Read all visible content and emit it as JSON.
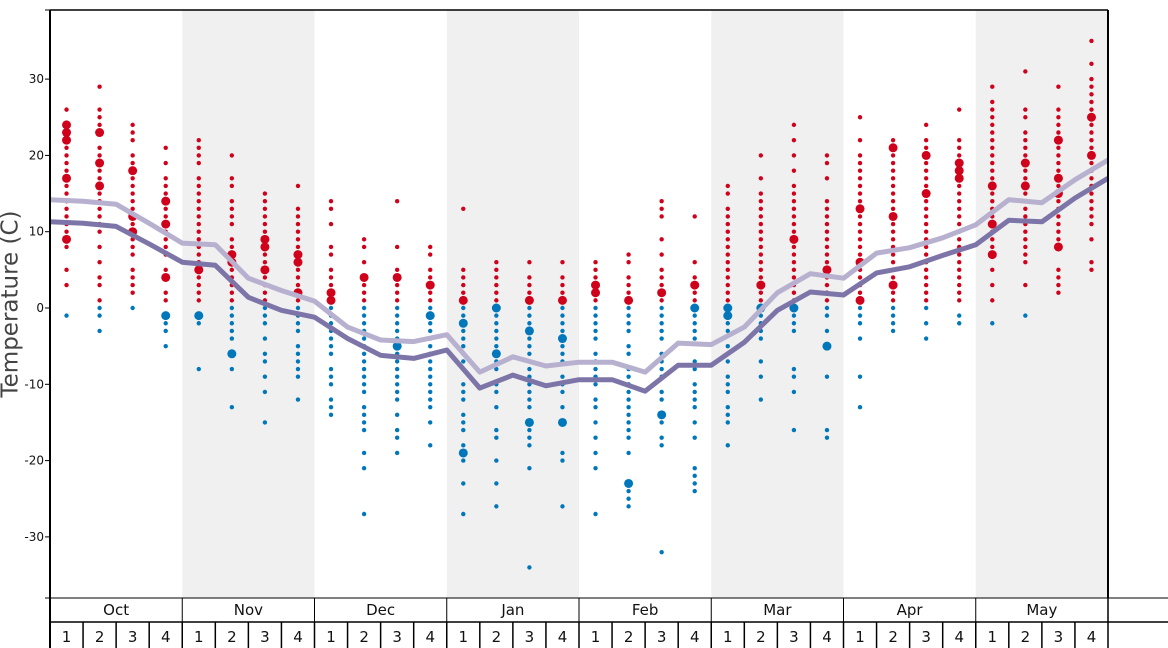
{
  "chart_data": {
    "type": "scatter",
    "ylabel": "Temperature (C)",
    "ylim": [
      -38,
      39
    ],
    "yticks": [
      30,
      20,
      10,
      0,
      -10,
      -20,
      -30
    ],
    "months": [
      "Oct",
      "Nov",
      "Dec",
      "Jan",
      "Feb",
      "Mar",
      "Apr",
      "May"
    ],
    "shaded_months": [
      "Nov",
      "Jan",
      "Mar",
      "May"
    ],
    "weeks_per_month": [
      "1",
      "2",
      "3",
      "4"
    ],
    "colors": {
      "warm_dot": "#d0021b",
      "cold_dot": "#0077bb",
      "upper_line": "#b7b0cf",
      "lower_line": "#7d74a8",
      "shade": "#f0f0f0"
    },
    "upper_line": [
      14.2,
      14.0,
      13.6,
      11.1,
      8.5,
      8.3,
      3.9,
      2.3,
      0.9,
      -2.5,
      -4.2,
      -4.4,
      -3.5,
      -8.4,
      -6.4,
      -7.6,
      -7.1,
      -7.1,
      -8.4,
      -4.6,
      -4.8,
      -2.5,
      2.0,
      4.5,
      3.9,
      7.2,
      7.9,
      9.2,
      10.9,
      14.2,
      13.8,
      16.8,
      19.4
    ],
    "lower_line": [
      11.3,
      11.1,
      10.7,
      8.4,
      6.0,
      5.6,
      1.4,
      -0.3,
      -1.2,
      -4.0,
      -6.2,
      -6.6,
      -5.5,
      -10.5,
      -8.8,
      -10.2,
      -9.4,
      -9.4,
      -10.9,
      -7.5,
      -7.5,
      -4.5,
      -0.3,
      2.1,
      1.7,
      4.6,
      5.4,
      6.9,
      8.3,
      11.5,
      11.3,
      14.4,
      17.0
    ],
    "weeks": [
      {
        "temps": [
          26,
          24,
          23,
          22,
          21,
          20,
          19,
          18,
          17,
          16,
          15,
          14,
          13,
          12,
          11,
          10,
          9,
          8,
          5,
          3,
          -1
        ],
        "frequent": [
          17,
          24,
          23,
          22,
          9
        ]
      },
      {
        "temps": [
          29,
          26,
          25,
          24,
          23,
          21,
          20,
          19,
          18,
          17,
          16,
          15,
          14,
          13,
          12,
          11,
          10,
          8,
          6,
          4,
          3,
          1,
          0,
          -1,
          -3
        ],
        "frequent": [
          23,
          19,
          16
        ]
      },
      {
        "temps": [
          24,
          23,
          22,
          20,
          19,
          18,
          17,
          16,
          15,
          14,
          13,
          12,
          11,
          10,
          9,
          8,
          7,
          5,
          4,
          3,
          2,
          0
        ],
        "frequent": [
          18,
          12,
          10
        ]
      },
      {
        "temps": [
          21,
          19,
          17,
          16,
          15,
          14,
          13,
          12,
          11,
          10,
          9,
          8,
          7,
          5,
          4,
          2,
          1,
          -1,
          -2,
          -3,
          -5
        ],
        "frequent": [
          14,
          11,
          4,
          -1
        ]
      },
      {
        "temps": [
          22,
          21,
          20,
          19,
          17,
          16,
          15,
          14,
          13,
          12,
          11,
          10,
          9,
          8,
          7,
          6,
          5,
          4,
          3,
          2,
          1,
          -1,
          -2,
          -8
        ],
        "frequent": [
          5,
          -1
        ]
      },
      {
        "temps": [
          20,
          17,
          16,
          14,
          13,
          12,
          11,
          9,
          8,
          7,
          6,
          5,
          4,
          3,
          2,
          1,
          0,
          -1,
          -2,
          -3,
          -4,
          -6,
          -8,
          -13
        ],
        "frequent": [
          7,
          6,
          -6
        ]
      },
      {
        "temps": [
          15,
          14,
          13,
          12,
          11,
          10,
          9,
          8,
          7,
          6,
          5,
          4,
          3,
          2,
          1,
          0,
          -1,
          -2,
          -4,
          -6,
          -7,
          -9,
          -11,
          -15
        ],
        "frequent": [
          9,
          8,
          5
        ]
      },
      {
        "temps": [
          16,
          13,
          12,
          11,
          10,
          9,
          8,
          7,
          6,
          5,
          4,
          3,
          2,
          1,
          0,
          -1,
          -2,
          -3,
          -5,
          -6,
          -7,
          -8,
          -9,
          -12
        ],
        "frequent": [
          7,
          6,
          2
        ]
      },
      {
        "temps": [
          14,
          13,
          11,
          8,
          7,
          5,
          4,
          3,
          2,
          1,
          0,
          -1,
          -2,
          -3,
          -4,
          -5,
          -6,
          -8,
          -9,
          -10,
          -12,
          -13,
          -14
        ],
        "frequent": [
          2,
          1
        ]
      },
      {
        "temps": [
          9,
          8,
          6,
          4,
          3,
          2,
          1,
          0,
          -1,
          -2,
          -3,
          -4,
          -5,
          -6,
          -7,
          -8,
          -9,
          -10,
          -11,
          -13,
          -14,
          -15,
          -16,
          -19,
          -21,
          -27
        ],
        "frequent": [
          4
        ]
      },
      {
        "temps": [
          14,
          8,
          5,
          4,
          3,
          2,
          1,
          0,
          -1,
          -2,
          -3,
          -4,
          -5,
          -6,
          -7,
          -8,
          -9,
          -10,
          -11,
          -12,
          -14,
          -16,
          -17,
          -19
        ],
        "frequent": [
          4,
          -5
        ]
      },
      {
        "temps": [
          8,
          7,
          5,
          4,
          3,
          2,
          1,
          0,
          -1,
          -2,
          -3,
          -4,
          -5,
          -6,
          -7,
          -8,
          -9,
          -10,
          -11,
          -12,
          -13,
          -15,
          -18
        ],
        "frequent": [
          3,
          -1
        ]
      },
      {
        "temps": [
          13,
          5,
          4,
          3,
          2,
          1,
          0,
          -1,
          -2,
          -3,
          -4,
          -5,
          -6,
          -7,
          -8,
          -10,
          -11,
          -12,
          -14,
          -15,
          -16,
          -18,
          -19,
          -20,
          -23,
          -27
        ],
        "frequent": [
          -2,
          -19,
          1
        ]
      },
      {
        "temps": [
          6,
          5,
          4,
          3,
          2,
          1,
          0,
          -1,
          -2,
          -3,
          -4,
          -5,
          -6,
          -7,
          -8,
          -10,
          -11,
          -13,
          -16,
          -17,
          -20,
          -23,
          -26
        ],
        "frequent": [
          0,
          -6
        ]
      },
      {
        "temps": [
          6,
          4,
          3,
          2,
          1,
          0,
          -1,
          -2,
          -3,
          -4,
          -5,
          -6,
          -7,
          -8,
          -9,
          -10,
          -11,
          -12,
          -13,
          -15,
          -16,
          -17,
          -18,
          -21,
          -34
        ],
        "frequent": [
          1,
          -3,
          -15
        ]
      },
      {
        "temps": [
          6,
          4,
          3,
          2,
          1,
          0,
          -1,
          -2,
          -3,
          -4,
          -5,
          -6,
          -7,
          -9,
          -10,
          -11,
          -13,
          -15,
          -19,
          -20,
          -26
        ],
        "frequent": [
          1,
          -4,
          -15
        ]
      },
      {
        "temps": [
          6,
          5,
          4,
          3,
          2,
          1,
          0,
          -1,
          -2,
          -3,
          -4,
          -6,
          -7,
          -8,
          -9,
          -10,
          -12,
          -13,
          -15,
          -17,
          -19,
          -21,
          -27
        ],
        "frequent": [
          3,
          2
        ]
      },
      {
        "temps": [
          7,
          6,
          4,
          3,
          2,
          1,
          0,
          -1,
          -2,
          -3,
          -5,
          -6,
          -8,
          -9,
          -10,
          -11,
          -12,
          -13,
          -14,
          -15,
          -16,
          -17,
          -19,
          -23,
          -24,
          -25,
          -26
        ],
        "frequent": [
          1,
          -23
        ]
      },
      {
        "temps": [
          14,
          13,
          12,
          9,
          7,
          5,
          4,
          3,
          2,
          1,
          0,
          -1,
          -2,
          -3,
          -4,
          -6,
          -7,
          -8,
          -9,
          -11,
          -12,
          -14,
          -15,
          -17,
          -18,
          -32
        ],
        "frequent": [
          2,
          -14
        ]
      },
      {
        "temps": [
          12,
          6,
          4,
          3,
          2,
          1,
          0,
          -1,
          -2,
          -3,
          -4,
          -7,
          -8,
          -10,
          -11,
          -12,
          -13,
          -15,
          -17,
          -21,
          -22,
          -23,
          -24
        ],
        "frequent": [
          3,
          0
        ]
      },
      {
        "temps": [
          16,
          15,
          13,
          12,
          11,
          10,
          9,
          8,
          7,
          6,
          5,
          4,
          3,
          2,
          1,
          0,
          -1,
          -2,
          -3,
          -5,
          -6,
          -7,
          -9,
          -10,
          -11,
          -13,
          -14,
          -15,
          -18
        ],
        "frequent": [
          -1,
          0
        ]
      },
      {
        "temps": [
          20,
          17,
          15,
          14,
          13,
          12,
          11,
          10,
          9,
          8,
          7,
          6,
          5,
          4,
          3,
          2,
          1,
          0,
          -1,
          -2,
          -3,
          -4,
          -7,
          -9,
          -12
        ],
        "frequent": [
          3,
          0
        ]
      },
      {
        "temps": [
          24,
          22,
          20,
          18,
          16,
          15,
          14,
          13,
          12,
          11,
          10,
          9,
          8,
          7,
          6,
          5,
          4,
          3,
          2,
          1,
          0,
          -1,
          -2,
          -3,
          -8,
          -9,
          -11,
          -16
        ],
        "frequent": [
          9,
          0
        ]
      },
      {
        "temps": [
          20,
          19,
          17,
          14,
          13,
          12,
          11,
          10,
          9,
          8,
          7,
          6,
          5,
          4,
          3,
          2,
          1,
          0,
          -1,
          -3,
          -5,
          -9,
          -16,
          -17
        ],
        "frequent": [
          5,
          -5
        ]
      },
      {
        "temps": [
          25,
          22,
          20,
          19,
          18,
          17,
          16,
          15,
          14,
          13,
          12,
          11,
          10,
          9,
          8,
          7,
          6,
          5,
          4,
          3,
          2,
          1,
          0,
          -1,
          -2,
          -4,
          -9,
          -13
        ],
        "frequent": [
          13,
          6,
          1
        ]
      },
      {
        "temps": [
          22,
          21,
          20,
          19,
          18,
          17,
          16,
          15,
          14,
          13,
          12,
          11,
          10,
          9,
          8,
          7,
          6,
          5,
          4,
          3,
          2,
          1,
          0,
          -1,
          -2,
          -3
        ],
        "frequent": [
          21,
          12,
          3
        ]
      },
      {
        "temps": [
          24,
          22,
          21,
          20,
          19,
          18,
          17,
          16,
          15,
          14,
          13,
          12,
          11,
          10,
          9,
          8,
          7,
          6,
          5,
          4,
          3,
          2,
          1,
          0,
          -2,
          -4
        ],
        "frequent": [
          20,
          15
        ]
      },
      {
        "temps": [
          26,
          22,
          21,
          20,
          19,
          18,
          17,
          16,
          15,
          14,
          13,
          12,
          11,
          10,
          9,
          8,
          7,
          6,
          5,
          4,
          3,
          2,
          1,
          -1,
          -2
        ],
        "frequent": [
          19,
          18,
          17
        ]
      },
      {
        "temps": [
          29,
          27,
          26,
          25,
          24,
          23,
          22,
          21,
          20,
          19,
          18,
          17,
          16,
          15,
          14,
          13,
          12,
          11,
          10,
          9,
          8,
          7,
          5,
          3,
          1,
          -2
        ],
        "frequent": [
          16,
          11,
          7
        ]
      },
      {
        "temps": [
          31,
          26,
          25,
          23,
          22,
          21,
          20,
          19,
          18,
          17,
          16,
          15,
          14,
          13,
          12,
          11,
          10,
          9,
          8,
          7,
          6,
          3,
          -1
        ],
        "frequent": [
          16,
          19
        ]
      },
      {
        "temps": [
          29,
          26,
          25,
          24,
          23,
          22,
          21,
          20,
          19,
          18,
          17,
          16,
          15,
          14,
          13,
          12,
          11,
          10,
          9,
          8,
          5,
          4,
          3,
          2
        ],
        "frequent": [
          22,
          17,
          15,
          8
        ]
      },
      {
        "temps": [
          35,
          32,
          30,
          29,
          28,
          27,
          26,
          25,
          24,
          23,
          22,
          21,
          20,
          19,
          18,
          17,
          16,
          15,
          14,
          13,
          12,
          11,
          9,
          6,
          5
        ],
        "frequent": [
          25,
          20
        ]
      }
    ]
  }
}
